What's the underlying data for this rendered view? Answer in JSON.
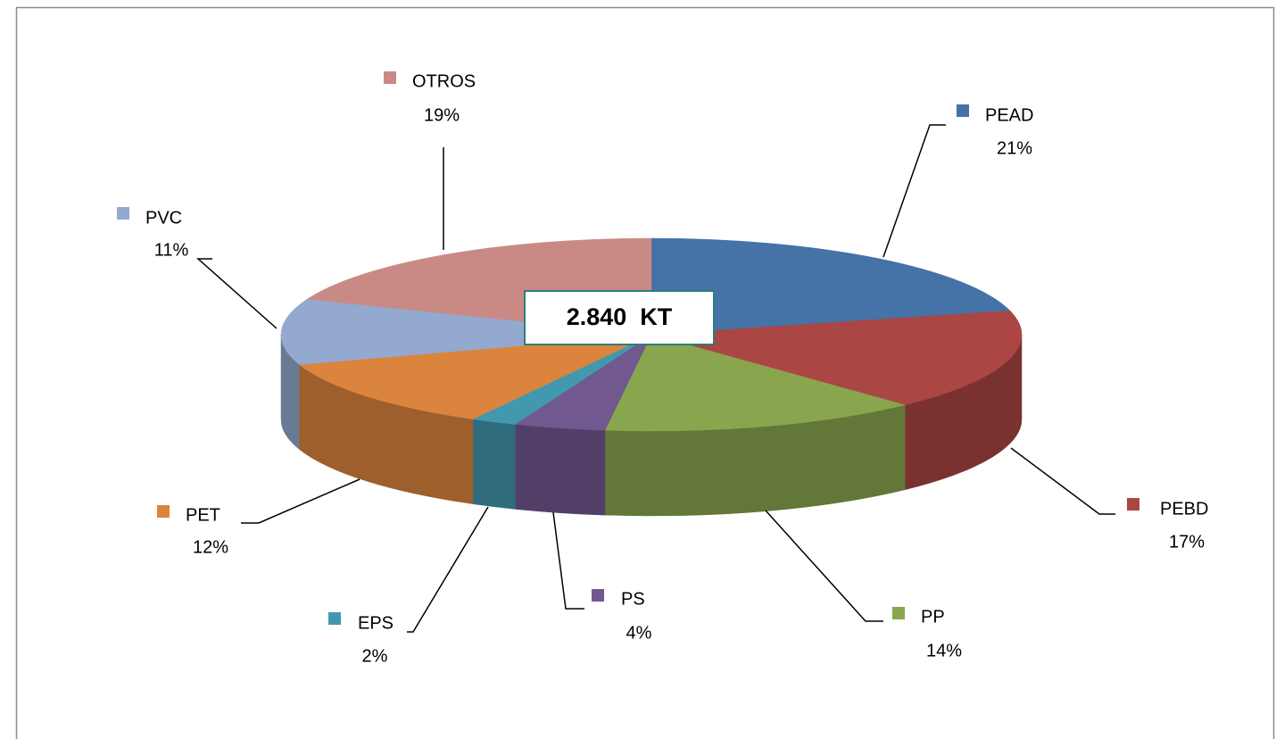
{
  "chart_data": {
    "type": "pie",
    "annotation": "2.840  KT",
    "categories": [
      "PEAD",
      "PEBD",
      "PP",
      "PS",
      "EPS",
      "PET",
      "PVC",
      "OTROS"
    ],
    "values": [
      21,
      17,
      14,
      4,
      2,
      12,
      11,
      19
    ],
    "value_labels": [
      "21%",
      "17%",
      "14%",
      "4%",
      "2%",
      "12%",
      "11%",
      "19%"
    ],
    "colors": [
      "#4572a7",
      "#aa4643",
      "#89a54e",
      "#71588f",
      "#4198af",
      "#db843d",
      "#93a9cf",
      "#c98a86"
    ]
  }
}
